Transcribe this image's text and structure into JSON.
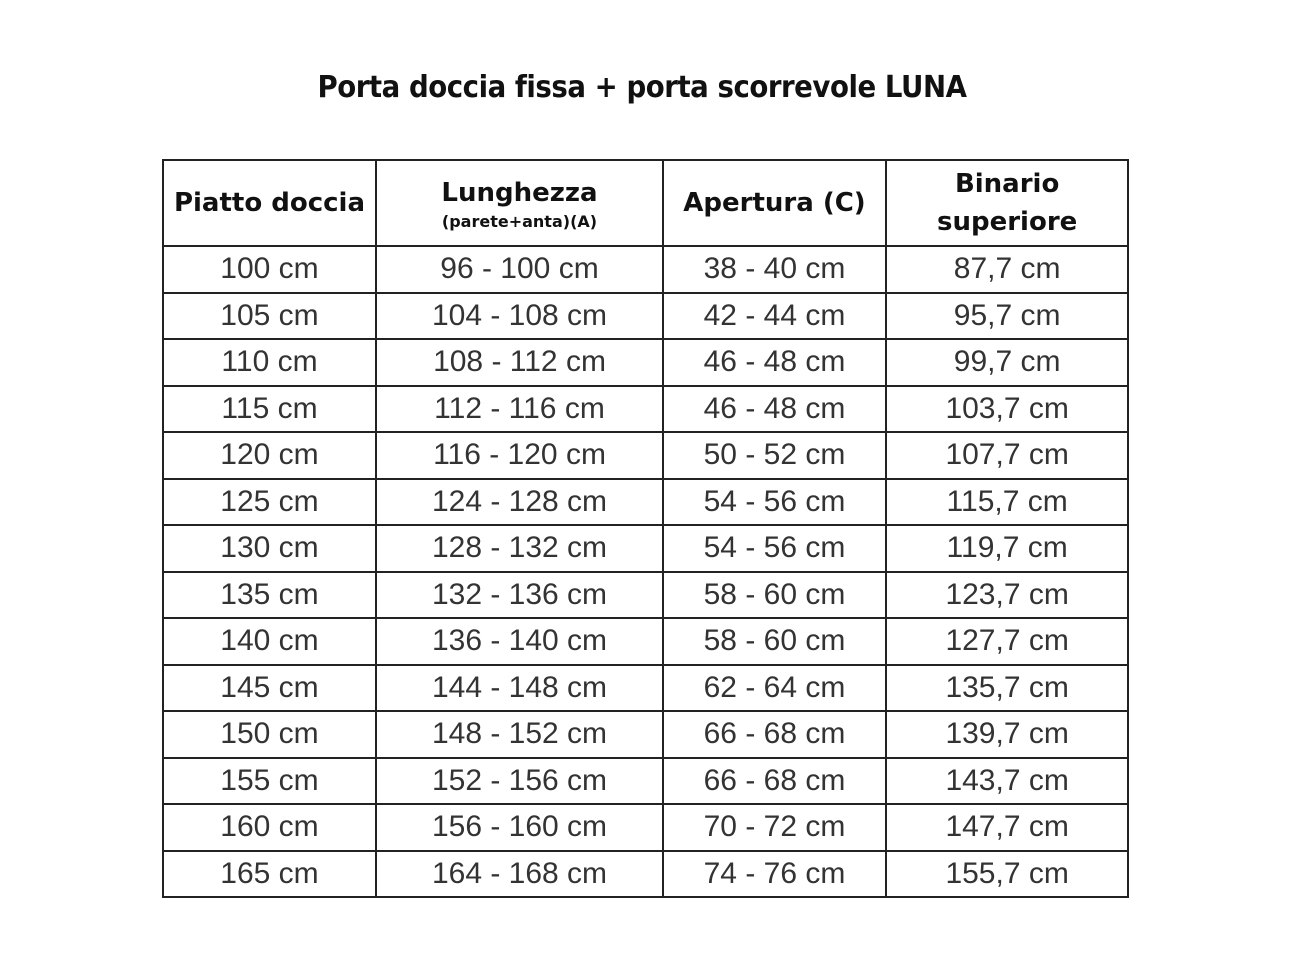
{
  "title": "Porta doccia fissa + porta scorrevole LUNA",
  "headers": [
    {
      "main": "Piatto doccia",
      "sub": ""
    },
    {
      "main": "Lunghezza",
      "sub": "(parete+anta)(A)"
    },
    {
      "main": "Apertura (C)",
      "sub": ""
    },
    {
      "main": "Binario superiore",
      "sub": ""
    }
  ],
  "rows": [
    [
      "100 cm",
      "96 - 100 cm",
      "38 - 40 cm",
      "87,7 cm"
    ],
    [
      "105 cm",
      "104 - 108 cm",
      "42 - 44 cm",
      "95,7 cm"
    ],
    [
      "110 cm",
      "108 - 112 cm",
      "46 - 48 cm",
      "99,7 cm"
    ],
    [
      "115 cm",
      "112 - 116 cm",
      "46 - 48 cm",
      "103,7 cm"
    ],
    [
      "120 cm",
      "116 - 120 cm",
      "50 - 52 cm",
      "107,7 cm"
    ],
    [
      "125 cm",
      "124 - 128 cm",
      "54 - 56 cm",
      "115,7 cm"
    ],
    [
      "130 cm",
      "128 - 132 cm",
      "54 - 56 cm",
      "119,7 cm"
    ],
    [
      "135 cm",
      "132 - 136 cm",
      "58 - 60 cm",
      "123,7 cm"
    ],
    [
      "140 cm",
      "136 - 140 cm",
      "58 - 60 cm",
      "127,7 cm"
    ],
    [
      "145 cm",
      "144 - 148 cm",
      "62 - 64 cm",
      "135,7 cm"
    ],
    [
      "150 cm",
      "148 - 152 cm",
      "66 - 68 cm",
      "139,7 cm"
    ],
    [
      "155 cm",
      "152 - 156 cm",
      "66 - 68 cm",
      "143,7 cm"
    ],
    [
      "160 cm",
      "156 - 160 cm",
      "70 - 72 cm",
      "147,7 cm"
    ],
    [
      "165 cm",
      "164 - 168 cm",
      "74 - 76 cm",
      "155,7 cm"
    ]
  ]
}
